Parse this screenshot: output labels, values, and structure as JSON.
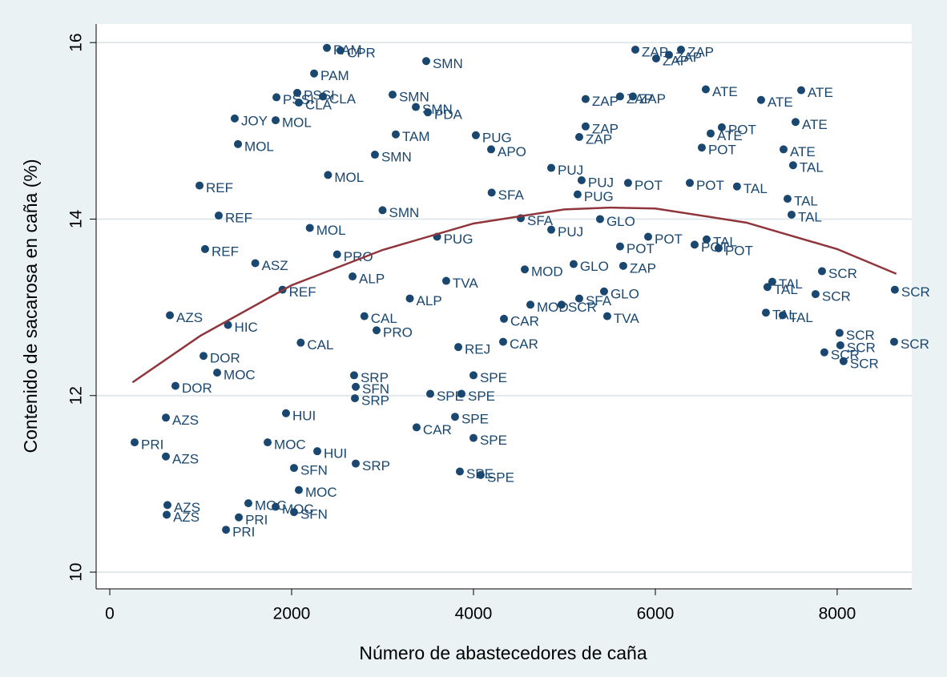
{
  "chart_data": {
    "type": "scatter",
    "xlabel": "Número de abastecedores de caña",
    "ylabel": "Contenido de sacarosa en caña (%)",
    "xlim": [
      -150,
      8820
    ],
    "ylim": [
      9.81,
      16.21
    ],
    "xticks": [
      0,
      2000,
      4000,
      6000,
      8000
    ],
    "yticks": [
      10,
      12,
      14,
      16
    ],
    "grid": true,
    "series": [
      {
        "color": "#1a476f",
        "x": [
          2388,
          2537,
          2247,
          3480,
          5780,
          6282,
          6009,
          6150,
          6555,
          7604,
          7163,
          2062,
          2344,
          1833,
          3110,
          2079,
          5233,
          5612,
          5753,
          3366,
          3498,
          1374,
          1824,
          6608,
          7542,
          6731,
          5233,
          3145,
          4026,
          5163,
          1410,
          6511,
          7410,
          7515,
          2916,
          4194,
          4855,
          987,
          5189,
          5700,
          6379,
          6898,
          5145,
          7454,
          7498,
          1198,
          4520,
          5392,
          4855,
          1048,
          5612,
          5921,
          6432,
          6564,
          6696,
          5647,
          7833,
          7286,
          7233,
          7762,
          8634,
          5436,
          5163,
          4969,
          5471,
          7216,
          7401,
          8026,
          8626,
          8035,
          7859,
          8070,
          4335,
          4326,
          661,
          722,
          273,
          617,
          617,
          634,
          626,
          1278,
          1419,
          1524,
          1824,
          2026,
          2079,
          2026,
          2705,
          3850,
          4079,
          4000,
          3797,
          3374,
          2282,
          3524,
          3868,
          2696,
          4000,
          2705,
          2687,
          1181,
          1031,
          1938,
          1736,
          3833,
          2934,
          2670,
          4564,
          4626,
          5101,
          2500,
          3000,
          2200,
          1900,
          3600,
          3300,
          2800,
          1600,
          4200,
          2400,
          3700,
          2100,
          1300
        ],
        "values": [
          15.94,
          15.91,
          15.65,
          15.79,
          15.92,
          15.92,
          15.82,
          15.86,
          15.47,
          15.46,
          15.35,
          15.43,
          15.39,
          15.38,
          15.41,
          15.32,
          15.36,
          15.39,
          15.39,
          15.27,
          15.21,
          15.14,
          15.12,
          14.97,
          15.1,
          15.04,
          15.05,
          14.96,
          14.95,
          14.93,
          14.85,
          14.81,
          14.79,
          14.61,
          14.73,
          14.79,
          14.58,
          14.38,
          14.44,
          14.41,
          14.41,
          14.37,
          14.28,
          14.23,
          14.05,
          14.04,
          14.01,
          14.0,
          13.88,
          13.66,
          13.69,
          13.8,
          13.71,
          13.77,
          13.67,
          13.47,
          13.41,
          13.29,
          13.23,
          13.15,
          13.2,
          13.18,
          13.1,
          13.03,
          12.9,
          12.94,
          12.91,
          12.71,
          12.61,
          12.57,
          12.49,
          12.39,
          12.87,
          12.61,
          12.91,
          12.11,
          11.47,
          11.75,
          11.31,
          10.76,
          10.65,
          10.48,
          10.62,
          10.78,
          10.74,
          10.68,
          10.93,
          11.18,
          11.23,
          11.14,
          11.1,
          11.52,
          11.76,
          11.64,
          11.37,
          12.02,
          12.02,
          11.97,
          12.23,
          12.1,
          12.23,
          12.26,
          12.45,
          11.8,
          11.47,
          12.55,
          12.74,
          13.35,
          13.43,
          13.03,
          13.49,
          13.6,
          14.1,
          13.9,
          13.2,
          13.8,
          13.1,
          12.9,
          13.5,
          14.3,
          14.5,
          13.3,
          12.6,
          12.8
        ],
        "labels": [
          "PAM",
          "CPR",
          "PAM",
          "SMN",
          "ZAP",
          "ZAP",
          "ZAP",
          "ZAP",
          "ATE",
          "ATE",
          "ATE",
          "PSSI",
          "CLA",
          "PSSI",
          "SMN",
          "CLA",
          "ZAP",
          "ZAP",
          "ZAP",
          "SMN",
          "PDA",
          "JOY",
          "MOL",
          "ATE",
          "ATE",
          "POT",
          "ZAP",
          "TAM",
          "PUG",
          "ZAP",
          "MOL",
          "POT",
          "ATE",
          "TAL",
          "SMN",
          "APO",
          "PUJ",
          "REF",
          "PUJ",
          "POT",
          "POT",
          "TAL",
          "PUG",
          "TAL",
          "TAL",
          "REF",
          "SFA",
          "GLO",
          "PUJ",
          "REF",
          "POT",
          "POT",
          "POT",
          "TAL",
          "POT",
          "ZAP",
          "SCR",
          "TAL",
          "TAL",
          "SCR",
          "SCR",
          "GLO",
          "SFA",
          "SCR",
          "TVA",
          "TAL",
          "TAL",
          "SCR",
          "SCR",
          "SCR",
          "SCR",
          "SCR",
          "CAR",
          "CAR",
          "AZS",
          "DOR",
          "PRI",
          "AZS",
          "AZS",
          "AZS",
          "AZS",
          "PRI",
          "PRI",
          "MOC",
          "MOC",
          "SFN",
          "MOC",
          "SFN",
          "SRP",
          "SPE",
          "SPE",
          "SPE",
          "SPE",
          "CAR",
          "HUI",
          "SPE",
          "SPE",
          "SRP",
          "SPE",
          "SFN",
          "SRP",
          "MOC",
          "DOR",
          "HUI",
          "MOC",
          "REJ",
          "PRO",
          "ALP",
          "MOD",
          "MOD",
          "GLO",
          "PRO",
          "SMN",
          "MOL",
          "REF",
          "PUG",
          "ALP",
          "CAL",
          "ASZ",
          "SFA",
          "MOL",
          "TVA",
          "CAL",
          "HIC"
        ]
      }
    ],
    "fit": {
      "color": "#90353b",
      "x": [
        250,
        1000,
        2000,
        3000,
        4000,
        5000,
        5500,
        6000,
        7000,
        8000,
        8650
      ],
      "values": [
        12.15,
        12.68,
        13.25,
        13.65,
        13.95,
        14.11,
        14.13,
        14.12,
        13.96,
        13.66,
        13.38
      ]
    }
  }
}
